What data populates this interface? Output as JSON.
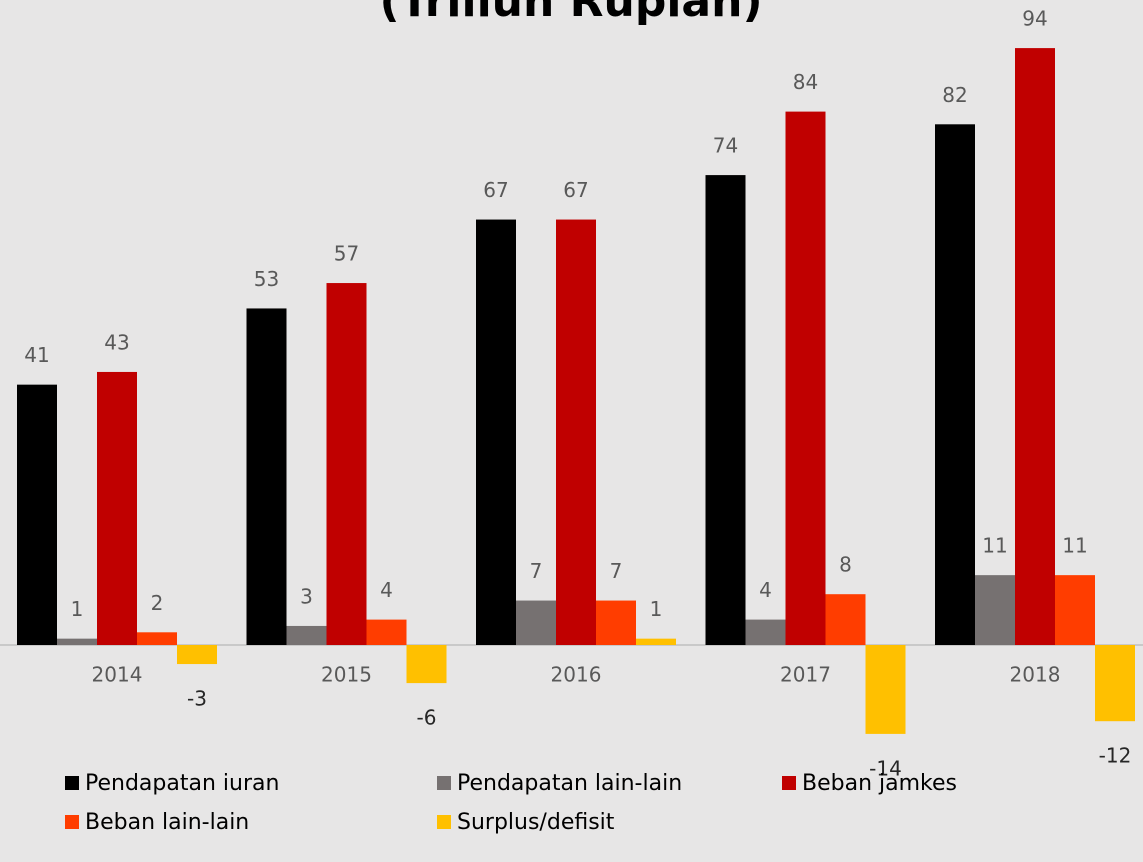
{
  "chart_data": {
    "type": "bar",
    "title": "(Triliun Rupiah)",
    "categories": [
      "2014",
      "2015",
      "2016",
      "2017",
      "2018"
    ],
    "series": [
      {
        "name": "Pendapatan iuran",
        "color": "#000000",
        "values": [
          41,
          53,
          67,
          74,
          82
        ]
      },
      {
        "name": "Pendapatan lain-lain",
        "color": "#767171",
        "values": [
          1,
          3,
          7,
          4,
          11
        ]
      },
      {
        "name": "Beban jamkes",
        "color": "#c00000",
        "values": [
          43,
          57,
          67,
          84,
          94
        ]
      },
      {
        "name": "Beban lain-lain",
        "color": "#ff3d00",
        "values": [
          2,
          4,
          7,
          8,
          11
        ]
      },
      {
        "name": "Surplus/defisit",
        "color": "#ffc000",
        "values": [
          -3,
          -6,
          1,
          -14,
          -12
        ]
      }
    ],
    "legend": "bottom"
  }
}
